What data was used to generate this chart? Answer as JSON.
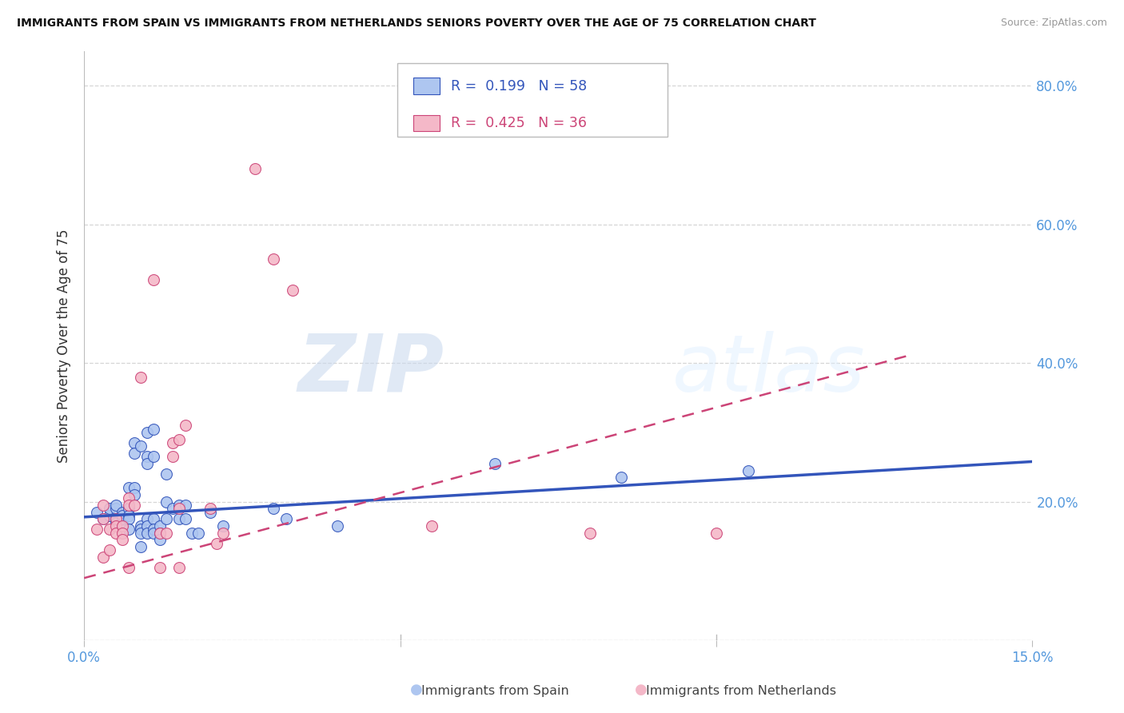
{
  "title": "IMMIGRANTS FROM SPAIN VS IMMIGRANTS FROM NETHERLANDS SENIORS POVERTY OVER THE AGE OF 75 CORRELATION CHART",
  "source": "Source: ZipAtlas.com",
  "ylabel": "Seniors Poverty Over the Age of 75",
  "xlim": [
    0.0,
    0.15
  ],
  "ylim": [
    0.0,
    0.85
  ],
  "yticks": [
    0.0,
    0.2,
    0.4,
    0.6,
    0.8
  ],
  "yticklabels_right": [
    "",
    "20.0%",
    "40.0%",
    "60.0%",
    "80.0%"
  ],
  "xticks": [
    0.0,
    0.05,
    0.1,
    0.15
  ],
  "xticklabels": [
    "0.0%",
    "",
    "",
    "15.0%"
  ],
  "r_spain": 0.199,
  "n_spain": 58,
  "r_netherlands": 0.425,
  "n_netherlands": 36,
  "color_spain": "#aec6f0",
  "color_netherlands": "#f4b8c8",
  "line_color_spain": "#3355bb",
  "line_color_netherlands": "#cc4477",
  "tick_color": "#5599dd",
  "watermark_zip": "ZIP",
  "watermark_atlas": "atlas",
  "spain_scatter": [
    [
      0.002,
      0.185
    ],
    [
      0.003,
      0.175
    ],
    [
      0.004,
      0.18
    ],
    [
      0.004,
      0.19
    ],
    [
      0.005,
      0.19
    ],
    [
      0.005,
      0.195
    ],
    [
      0.005,
      0.175
    ],
    [
      0.005,
      0.17
    ],
    [
      0.006,
      0.17
    ],
    [
      0.006,
      0.175
    ],
    [
      0.006,
      0.185
    ],
    [
      0.006,
      0.18
    ],
    [
      0.007,
      0.19
    ],
    [
      0.007,
      0.18
    ],
    [
      0.007,
      0.175
    ],
    [
      0.007,
      0.16
    ],
    [
      0.007,
      0.22
    ],
    [
      0.008,
      0.285
    ],
    [
      0.008,
      0.27
    ],
    [
      0.008,
      0.22
    ],
    [
      0.008,
      0.21
    ],
    [
      0.009,
      0.28
    ],
    [
      0.009,
      0.165
    ],
    [
      0.009,
      0.16
    ],
    [
      0.009,
      0.155
    ],
    [
      0.009,
      0.135
    ],
    [
      0.01,
      0.3
    ],
    [
      0.01,
      0.265
    ],
    [
      0.01,
      0.255
    ],
    [
      0.01,
      0.175
    ],
    [
      0.01,
      0.165
    ],
    [
      0.01,
      0.155
    ],
    [
      0.011,
      0.305
    ],
    [
      0.011,
      0.265
    ],
    [
      0.011,
      0.175
    ],
    [
      0.011,
      0.16
    ],
    [
      0.011,
      0.155
    ],
    [
      0.012,
      0.165
    ],
    [
      0.012,
      0.155
    ],
    [
      0.012,
      0.145
    ],
    [
      0.013,
      0.24
    ],
    [
      0.013,
      0.2
    ],
    [
      0.013,
      0.175
    ],
    [
      0.014,
      0.19
    ],
    [
      0.015,
      0.195
    ],
    [
      0.015,
      0.175
    ],
    [
      0.016,
      0.195
    ],
    [
      0.016,
      0.175
    ],
    [
      0.017,
      0.155
    ],
    [
      0.018,
      0.155
    ],
    [
      0.02,
      0.185
    ],
    [
      0.022,
      0.165
    ],
    [
      0.03,
      0.19
    ],
    [
      0.032,
      0.175
    ],
    [
      0.04,
      0.165
    ],
    [
      0.065,
      0.255
    ],
    [
      0.085,
      0.235
    ],
    [
      0.105,
      0.245
    ]
  ],
  "netherlands_scatter": [
    [
      0.002,
      0.16
    ],
    [
      0.003,
      0.12
    ],
    [
      0.003,
      0.175
    ],
    [
      0.003,
      0.195
    ],
    [
      0.004,
      0.13
    ],
    [
      0.004,
      0.16
    ],
    [
      0.005,
      0.175
    ],
    [
      0.005,
      0.165
    ],
    [
      0.005,
      0.155
    ],
    [
      0.006,
      0.165
    ],
    [
      0.006,
      0.155
    ],
    [
      0.006,
      0.145
    ],
    [
      0.007,
      0.205
    ],
    [
      0.007,
      0.195
    ],
    [
      0.007,
      0.105
    ],
    [
      0.008,
      0.195
    ],
    [
      0.009,
      0.38
    ],
    [
      0.011,
      0.52
    ],
    [
      0.012,
      0.155
    ],
    [
      0.012,
      0.105
    ],
    [
      0.013,
      0.155
    ],
    [
      0.014,
      0.285
    ],
    [
      0.014,
      0.265
    ],
    [
      0.015,
      0.29
    ],
    [
      0.015,
      0.19
    ],
    [
      0.015,
      0.105
    ],
    [
      0.016,
      0.31
    ],
    [
      0.02,
      0.19
    ],
    [
      0.021,
      0.14
    ],
    [
      0.022,
      0.155
    ],
    [
      0.027,
      0.68
    ],
    [
      0.03,
      0.55
    ],
    [
      0.033,
      0.505
    ],
    [
      0.055,
      0.165
    ],
    [
      0.08,
      0.155
    ],
    [
      0.1,
      0.155
    ]
  ],
  "spain_trendline": [
    [
      0.0,
      0.178
    ],
    [
      0.15,
      0.258
    ]
  ],
  "netherlands_trendline": [
    [
      0.0,
      0.09
    ],
    [
      0.13,
      0.41
    ]
  ]
}
